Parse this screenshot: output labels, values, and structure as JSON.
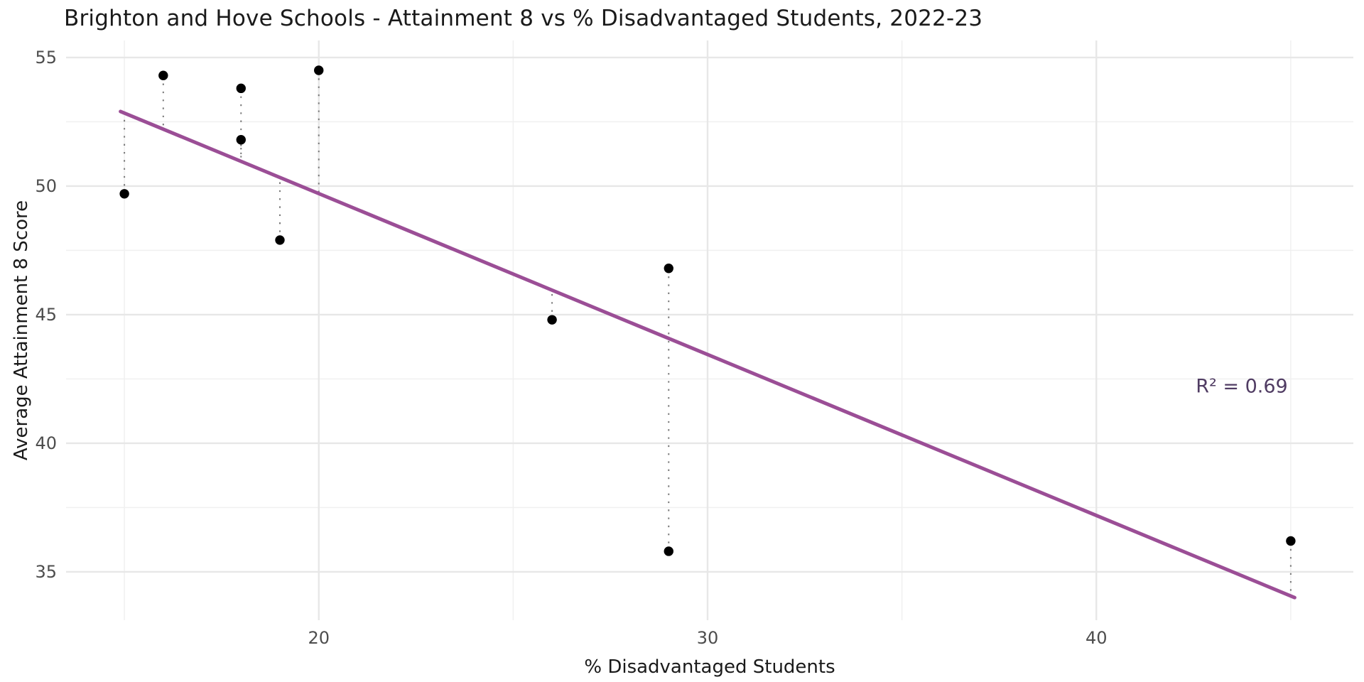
{
  "chart_data": {
    "type": "scatter",
    "title": "Brighton and Hove Schools - Attainment 8 vs % Disadvantaged Students, 2022-23",
    "xlabel": "% Disadvantaged Students",
    "ylabel": "Average Attainment 8 Score",
    "xlim": [
      13.5,
      46.61
    ],
    "ylim": [
      33.12,
      55.66
    ],
    "x_major_ticks": [
      20,
      30,
      40
    ],
    "x_minor_gridlines": [
      15,
      25,
      35,
      45
    ],
    "y_major_ticks": [
      35,
      40,
      45,
      50,
      55
    ],
    "y_minor_gridlines": [
      37.5,
      42.5,
      47.5,
      52.5
    ],
    "grid": "major+minor",
    "legend": "none",
    "points": [
      {
        "x": 15,
        "y": 49.7
      },
      {
        "x": 16,
        "y": 54.3
      },
      {
        "x": 18,
        "y": 53.8
      },
      {
        "x": 18,
        "y": 51.8
      },
      {
        "x": 19,
        "y": 47.9
      },
      {
        "x": 20,
        "y": 54.5
      },
      {
        "x": 26,
        "y": 44.8
      },
      {
        "x": 29,
        "y": 46.8
      },
      {
        "x": 29,
        "y": 35.8
      },
      {
        "x": 45,
        "y": 36.2
      }
    ],
    "trend_line": {
      "x1": 14.9,
      "y1": 52.9,
      "x2": 45.1,
      "y2": 34.0
    },
    "residual_lines_to_trend": true,
    "annotation": {
      "text": "R² = 0.69",
      "x": 43.7,
      "y": 42.2
    },
    "colors": {
      "trend": "#9b4e96",
      "annotation": "#503c63",
      "point": "#000000",
      "residual": "#7a7a7a",
      "grid_major": "#e7e7e7",
      "grid_minor": "#f0f0f0",
      "tick_label": "#4d4d4d",
      "text": "#1a1a1a",
      "background": "#ffffff"
    }
  }
}
